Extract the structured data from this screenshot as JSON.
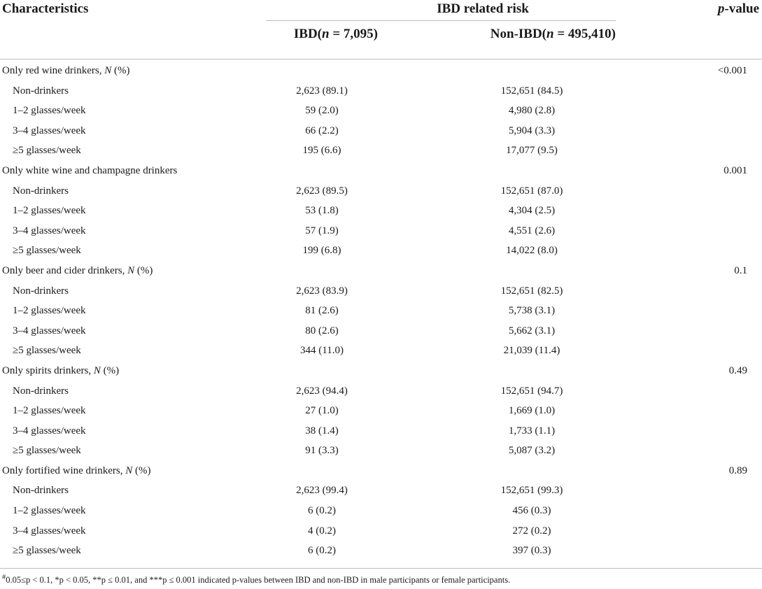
{
  "header": {
    "characteristics": "Characteristics",
    "group_title": "IBD related risk",
    "p_value_italic": "p",
    "p_value_rest": "-value",
    "ibd_col_prefix": "IBD(",
    "ibd_col_n": "n",
    "ibd_col_suffix": " = 7,095)",
    "nonibd_col_prefix": "Non-IBD(",
    "nonibd_col_n": "n",
    "nonibd_col_suffix": " = 495,410)"
  },
  "rows": [
    {
      "label": "Only red wine drinkers, ",
      "label_italic": "N",
      "label_tail": " (%)",
      "ibd": "",
      "nonibd": "",
      "p": "<0.001",
      "sub": false
    },
    {
      "label": "Non-drinkers",
      "label_italic": "",
      "label_tail": "",
      "ibd": "2,623 (89.1)",
      "nonibd": "152,651 (84.5)",
      "p": "",
      "sub": true
    },
    {
      "label": "1–2 glasses/week",
      "label_italic": "",
      "label_tail": "",
      "ibd": "59 (2.0)",
      "nonibd": "4,980 (2.8)",
      "p": "",
      "sub": true
    },
    {
      "label": "3–4 glasses/week",
      "label_italic": "",
      "label_tail": "",
      "ibd": "66 (2.2)",
      "nonibd": "5,904 (3.3)",
      "p": "",
      "sub": true
    },
    {
      "label": "≥5 glasses/week",
      "label_italic": "",
      "label_tail": "",
      "ibd": "195 (6.6)",
      "nonibd": "17,077 (9.5)",
      "p": "",
      "sub": true
    },
    {
      "label": "Only white wine and champagne drinkers",
      "label_italic": "",
      "label_tail": "",
      "ibd": "",
      "nonibd": "",
      "p": "0.001",
      "sub": false
    },
    {
      "label": "Non-drinkers",
      "label_italic": "",
      "label_tail": "",
      "ibd": "2,623 (89.5)",
      "nonibd": "152,651 (87.0)",
      "p": "",
      "sub": true
    },
    {
      "label": "1–2 glasses/week",
      "label_italic": "",
      "label_tail": "",
      "ibd": "53 (1.8)",
      "nonibd": "4,304 (2.5)",
      "p": "",
      "sub": true
    },
    {
      "label": "3–4 glasses/week",
      "label_italic": "",
      "label_tail": "",
      "ibd": "57 (1.9)",
      "nonibd": "4,551 (2.6)",
      "p": "",
      "sub": true
    },
    {
      "label": "≥5 glasses/week",
      "label_italic": "",
      "label_tail": "",
      "ibd": "199 (6.8)",
      "nonibd": "14,022 (8.0)",
      "p": "",
      "sub": true
    },
    {
      "label": "Only beer and cider drinkers, ",
      "label_italic": "N",
      "label_tail": " (%)",
      "ibd": "",
      "nonibd": "",
      "p": "0.1",
      "sub": false
    },
    {
      "label": "Non-drinkers",
      "label_italic": "",
      "label_tail": "",
      "ibd": "2,623 (83.9)",
      "nonibd": "152,651 (82.5)",
      "p": "",
      "sub": true
    },
    {
      "label": "1–2 glasses/week",
      "label_italic": "",
      "label_tail": "",
      "ibd": "81 (2.6)",
      "nonibd": "5,738 (3.1)",
      "p": "",
      "sub": true
    },
    {
      "label": "3–4 glasses/week",
      "label_italic": "",
      "label_tail": "",
      "ibd": "80 (2.6)",
      "nonibd": "5,662 (3.1)",
      "p": "",
      "sub": true
    },
    {
      "label": "≥5 glasses/week",
      "label_italic": "",
      "label_tail": "",
      "ibd": "344 (11.0)",
      "nonibd": "21,039 (11.4)",
      "p": "",
      "sub": true
    },
    {
      "label": "Only spirits drinkers, ",
      "label_italic": "N",
      "label_tail": " (%)",
      "ibd": "",
      "nonibd": "",
      "p": "0.49",
      "sub": false
    },
    {
      "label": "Non-drinkers",
      "label_italic": "",
      "label_tail": "",
      "ibd": "2,623 (94.4)",
      "nonibd": "152,651 (94.7)",
      "p": "",
      "sub": true
    },
    {
      "label": "1–2 glasses/week",
      "label_italic": "",
      "label_tail": "",
      "ibd": "27 (1.0)",
      "nonibd": "1,669 (1.0)",
      "p": "",
      "sub": true
    },
    {
      "label": "3–4 glasses/week",
      "label_italic": "",
      "label_tail": "",
      "ibd": "38 (1.4)",
      "nonibd": "1,733 (1.1)",
      "p": "",
      "sub": true
    },
    {
      "label": "≥5 glasses/week",
      "label_italic": "",
      "label_tail": "",
      "ibd": "91 (3.3)",
      "nonibd": "5,087 (3.2)",
      "p": "",
      "sub": true
    },
    {
      "label": "Only fortified wine drinkers, ",
      "label_italic": "N",
      "label_tail": " (%)",
      "ibd": "",
      "nonibd": "",
      "p": "0.89",
      "sub": false
    },
    {
      "label": "Non-drinkers",
      "label_italic": "",
      "label_tail": "",
      "ibd": "2,623 (99.4)",
      "nonibd": "152,651 (99.3)",
      "p": "",
      "sub": true
    },
    {
      "label": "1–2 glasses/week",
      "label_italic": "",
      "label_tail": "",
      "ibd": "6 (0.2)",
      "nonibd": "456 (0.3)",
      "p": "",
      "sub": true
    },
    {
      "label": "3–4 glasses/week",
      "label_italic": "",
      "label_tail": "",
      "ibd": "4 (0.2)",
      "nonibd": "272 (0.2)",
      "p": "",
      "sub": true
    },
    {
      "label": "≥5 glasses/week",
      "label_italic": "",
      "label_tail": "",
      "ibd": "6 (0.2)",
      "nonibd": "397 (0.3)",
      "p": "",
      "sub": true
    }
  ],
  "footnote": {
    "sup": "#",
    "text": "0.05≤p < 0.1, *p < 0.05, **p ≤ 0.01, and ***p ≤ 0.001 indicated p-values between IBD and non-IBD in male participants or female participants."
  }
}
